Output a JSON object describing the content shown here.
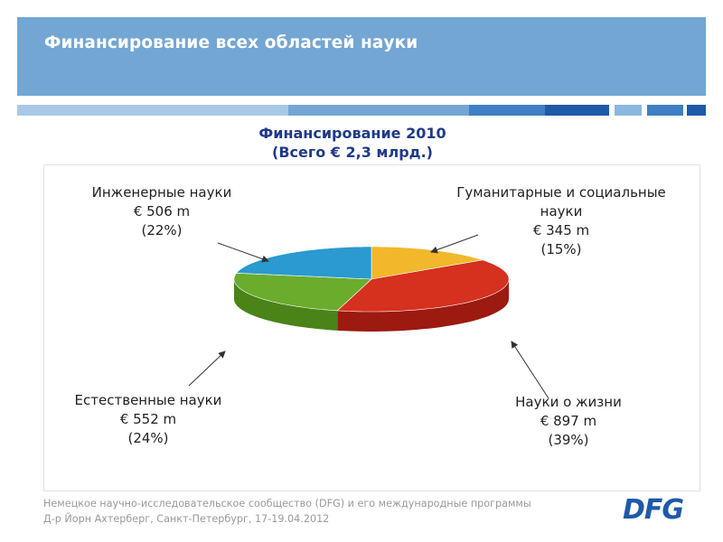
{
  "header": {
    "title": "Финансирование всех областей науки"
  },
  "stripe_colors": [
    "#a8c8e8",
    "#73a6d3",
    "#3f7fc4",
    "#1e5aa8",
    "#8bb8e0",
    "#3f7fc4",
    "#1e5aa8"
  ],
  "chart_data": {
    "type": "pie",
    "title": "Финансирование 2010",
    "subtitle": "(Всего € 2,3 млрд.)",
    "total": "€ 2,3 млрд.",
    "slices": [
      {
        "name": "Гуманитарные и социальные науки",
        "value_label": "€ 345 m",
        "value": 345,
        "percent": 15,
        "percent_label": "(15%)",
        "color": "#f0b82a",
        "side_color": "#c89010"
      },
      {
        "name": "Науки о жизни",
        "value_label": "€ 897 m",
        "value": 897,
        "percent": 39,
        "percent_label": "(39%)",
        "color": "#d6301e",
        "side_color": "#9c1a10"
      },
      {
        "name": "Естественные науки",
        "value_label": "€ 552 m",
        "value": 552,
        "percent": 24,
        "percent_label": "(24%)",
        "color": "#6aac2c",
        "side_color": "#4a8418"
      },
      {
        "name": "Инженерные науки",
        "value_label": "€ 506 m",
        "value": 506,
        "percent": 22,
        "percent_label": "(22%)",
        "color": "#2a9ad0",
        "side_color": "#1a70a0"
      }
    ]
  },
  "labels": {
    "humanities": {
      "line1": "Гуманитарные и социальные",
      "line2": "науки",
      "value": "€ 345 m",
      "percent": "(15%)"
    },
    "life": {
      "line1": "Науки о жизни",
      "value": "€ 897 m",
      "percent": "(39%)"
    },
    "natural": {
      "line1": "Естественные науки",
      "value": "€ 552 m",
      "percent": "(24%)"
    },
    "engineering": {
      "line1": "Инженерные науки",
      "value": "€ 506 m",
      "percent": "(22%)"
    }
  },
  "footer": {
    "line1": "Немецкое научно-исследовательское сообщество (DFG) и его международные программы",
    "line2": "Д-р Йорн Ахтерберг, Санкт-Петербург, 17-19.04.2012"
  },
  "logo": "DFG"
}
